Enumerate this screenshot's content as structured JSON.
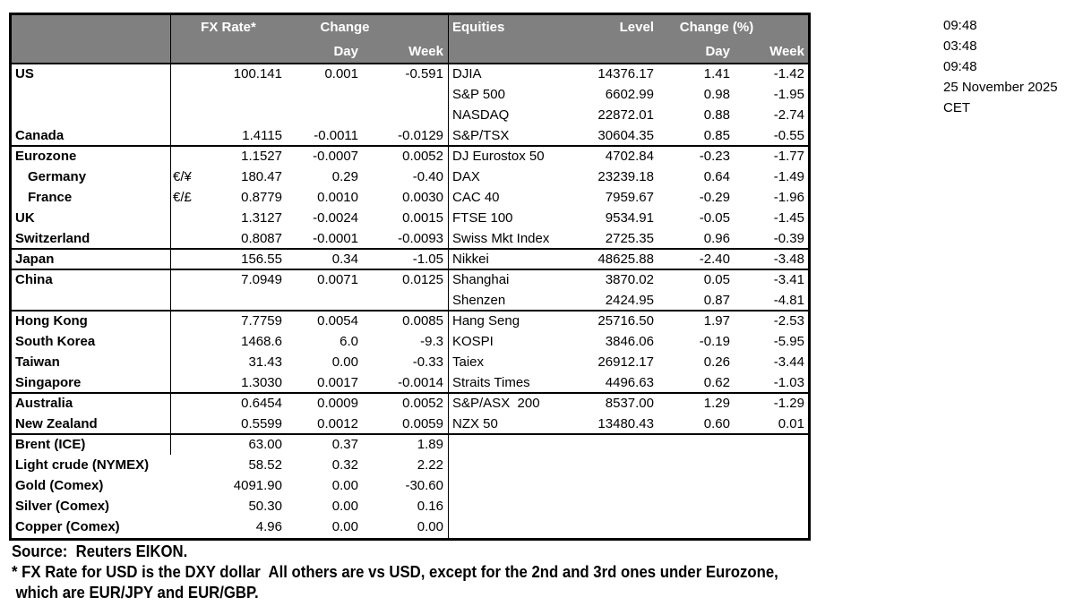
{
  "colors": {
    "header_bg": "#808080",
    "header_text": "#ffffff",
    "border": "#000000",
    "text": "#000000",
    "background": "#ffffff"
  },
  "timestamps": {
    "lines": [
      "09:48",
      "03:48",
      "09:48",
      "25 November 2025",
      "CET"
    ]
  },
  "table": {
    "fx_header": {
      "rate": "FX Rate*",
      "change": "Change",
      "day": "Day",
      "week": "Week"
    },
    "eq_header": {
      "title": "Equities",
      "level": "Level",
      "change": "Change (%)",
      "day": "Day",
      "week": "Week"
    },
    "rows": [
      {
        "label": "US",
        "rate": "100.141",
        "day": "0.001",
        "week": "-0.591",
        "eq": "DJIA",
        "level": "14376.17",
        "eqDay": "1.41",
        "eqWeek": "-1.42"
      },
      {
        "eq": "S&P 500",
        "level": "6602.99",
        "eqDay": "0.98",
        "eqWeek": "-1.95"
      },
      {
        "eq": "NASDAQ",
        "level": "22872.01",
        "eqDay": "0.88",
        "eqWeek": "-2.74"
      },
      {
        "label": "Canada",
        "rate": "1.4115",
        "day": "-0.0011",
        "week": "-0.0129",
        "eq": "S&P/TSX",
        "level": "30604.35",
        "eqDay": "0.85",
        "eqWeek": "-0.55",
        "borderAfter": true
      },
      {
        "label": "Eurozone",
        "rate": "1.1527",
        "day": "-0.0007",
        "week": "0.0052",
        "eq": "DJ Eurostox 50",
        "level": "4702.84",
        "eqDay": "-0.23",
        "eqWeek": "-1.77"
      },
      {
        "label": "Germany",
        "indent": true,
        "pair": "€/¥",
        "rate": "180.47",
        "day": "0.29",
        "week": "-0.40",
        "eq": "DAX",
        "level": "23239.18",
        "eqDay": "0.64",
        "eqWeek": "-1.49"
      },
      {
        "label": "France",
        "indent": true,
        "pair": "€/£",
        "rate": "0.8779",
        "day": "0.0010",
        "week": "0.0030",
        "eq": "CAC 40",
        "level": "7959.67",
        "eqDay": "-0.29",
        "eqWeek": "-1.96"
      },
      {
        "label": "UK",
        "rate": "1.3127",
        "day": "-0.0024",
        "week": "0.0015",
        "eq": "FTSE 100",
        "level": "9534.91",
        "eqDay": "-0.05",
        "eqWeek": "-1.45"
      },
      {
        "label": "Switzerland",
        "rate": "0.8087",
        "day": "-0.0001",
        "week": "-0.0093",
        "eq": "Swiss Mkt Index",
        "level": "2725.35",
        "eqDay": "0.96",
        "eqWeek": "-0.39",
        "borderAfter": true
      },
      {
        "label": "Japan",
        "rate": "156.55",
        "day": "0.34",
        "week": "-1.05",
        "eq": "Nikkei",
        "level": "48625.88",
        "eqDay": "-2.40",
        "eqWeek": "-3.48",
        "borderAfter": true
      },
      {
        "label": "China",
        "rate": "7.0949",
        "day": "0.0071",
        "week": "0.0125",
        "eq": "Shanghai",
        "level": "3870.02",
        "eqDay": "0.05",
        "eqWeek": "-3.41"
      },
      {
        "eq": "Shenzen",
        "level": "2424.95",
        "eqDay": "0.87",
        "eqWeek": "-4.81",
        "borderAfter": true
      },
      {
        "label": "Hong Kong",
        "rate": "7.7759",
        "day": "0.0054",
        "week": "0.0085",
        "eq": "Hang Seng",
        "level": "25716.50",
        "eqDay": "1.97",
        "eqWeek": "-2.53"
      },
      {
        "label": "South Korea",
        "rate": "1468.6",
        "day": "6.0",
        "week": "-9.3",
        "eq": "KOSPI",
        "level": "3846.06",
        "eqDay": "-0.19",
        "eqWeek": "-5.95"
      },
      {
        "label": "Taiwan",
        "rate": "31.43",
        "day": "0.00",
        "week": "-0.33",
        "eq": "Taiex",
        "level": "26912.17",
        "eqDay": "0.26",
        "eqWeek": "-3.44"
      },
      {
        "label": "Singapore",
        "rate": "1.3030",
        "day": "0.0017",
        "week": "-0.0014",
        "eq": "Straits Times",
        "level": "4496.63",
        "eqDay": "0.62",
        "eqWeek": "-1.03",
        "borderAfter": true
      },
      {
        "label": "Australia",
        "rate": "0.6454",
        "day": "0.0009",
        "week": "0.0052",
        "eq": "S&P/ASX  200",
        "level": "8537.00",
        "eqDay": "1.29",
        "eqWeek": "-1.29"
      },
      {
        "label": "New Zealand",
        "rate": "0.5599",
        "day": "0.0012",
        "week": "0.0059",
        "eq": "NZX 50",
        "level": "13480.43",
        "eqDay": "0.60",
        "eqWeek": "0.01",
        "borderAfter": true
      },
      {
        "label": "Brent (ICE)",
        "rate": "63.00",
        "day": "0.37",
        "week": "1.89"
      },
      {
        "label": "Light crude (NYMEX)",
        "rate": "58.52",
        "day": "0.32",
        "week": "2.22"
      },
      {
        "label": "Gold (Comex)",
        "rate": "4091.90",
        "day": "0.00",
        "week": "-30.60"
      },
      {
        "label": "Silver (Comex)",
        "rate": "50.30",
        "day": "0.00",
        "week": "0.16"
      },
      {
        "label": "Copper (Comex)",
        "rate": "4.96",
        "day": "0.00",
        "week": "0.00"
      }
    ]
  },
  "footer": {
    "source": "Source:  Reuters EIKON.",
    "note1": "* FX Rate for USD is the DXY dollar  All others are vs USD, except for the 2nd and 3rd ones under Eurozone,",
    "note2": " which are EUR/JPY and EUR/GBP."
  }
}
